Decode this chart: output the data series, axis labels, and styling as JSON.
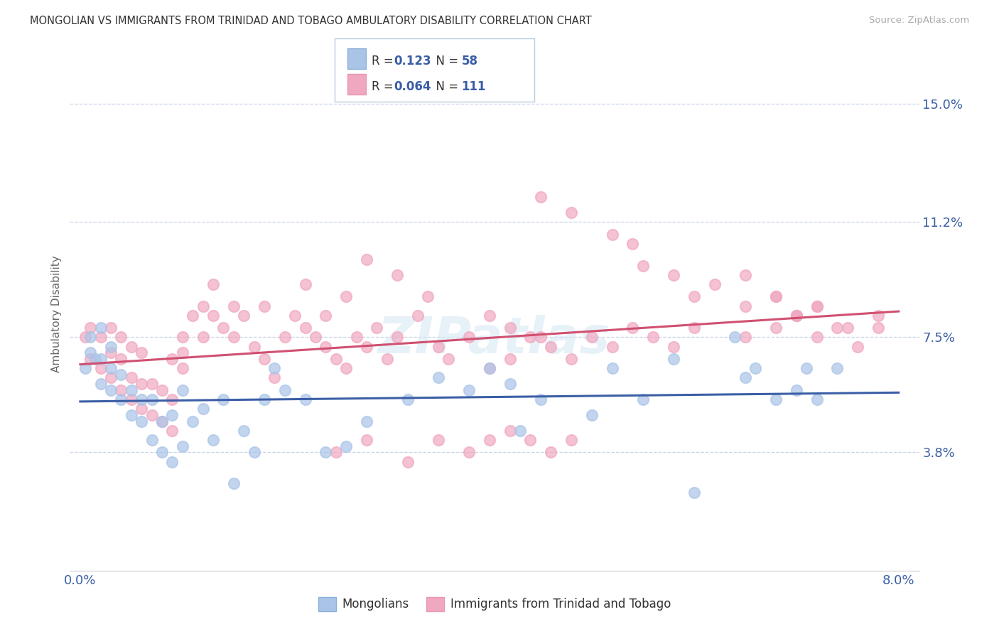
{
  "title": "MONGOLIAN VS IMMIGRANTS FROM TRINIDAD AND TOBAGO AMBULATORY DISABILITY CORRELATION CHART",
  "source": "Source: ZipAtlas.com",
  "ylabel": "Ambulatory Disability",
  "xlim": [
    -0.001,
    0.082
  ],
  "ylim": [
    0.0,
    0.165
  ],
  "yticks": [
    0.038,
    0.075,
    0.112,
    0.15
  ],
  "ytick_labels": [
    "3.8%",
    "7.5%",
    "11.2%",
    "15.0%"
  ],
  "xtick_vals": [
    0.0,
    0.08
  ],
  "xtick_labels": [
    "0.0%",
    "8.0%"
  ],
  "mongolian_color": "#aac4e8",
  "trinidad_color": "#f0a8c0",
  "mongolian_line_color": "#3b5ea6",
  "trinidad_line_color": "#d05070",
  "legend_R1": "0.123",
  "legend_N1": "58",
  "legend_R2": "0.064",
  "legend_N2": "111",
  "background_color": "#ffffff",
  "grid_color": "#c8d4e8",
  "watermark": "ZIPatlas",
  "mongolian_x": [
    0.0005,
    0.001,
    0.001,
    0.0015,
    0.002,
    0.002,
    0.002,
    0.003,
    0.003,
    0.003,
    0.004,
    0.004,
    0.005,
    0.005,
    0.006,
    0.006,
    0.007,
    0.007,
    0.008,
    0.008,
    0.009,
    0.009,
    0.01,
    0.01,
    0.011,
    0.012,
    0.013,
    0.014,
    0.015,
    0.016,
    0.017,
    0.018,
    0.019,
    0.02,
    0.022,
    0.024,
    0.026,
    0.028,
    0.032,
    0.035,
    0.038,
    0.04,
    0.042,
    0.043,
    0.045,
    0.05,
    0.052,
    0.055,
    0.058,
    0.06,
    0.064,
    0.065,
    0.066,
    0.068,
    0.07,
    0.071,
    0.072,
    0.074
  ],
  "mongolian_y": [
    0.065,
    0.07,
    0.075,
    0.068,
    0.06,
    0.068,
    0.078,
    0.058,
    0.065,
    0.072,
    0.055,
    0.063,
    0.05,
    0.058,
    0.048,
    0.055,
    0.042,
    0.055,
    0.038,
    0.048,
    0.035,
    0.05,
    0.04,
    0.058,
    0.048,
    0.052,
    0.042,
    0.055,
    0.028,
    0.045,
    0.038,
    0.055,
    0.065,
    0.058,
    0.055,
    0.038,
    0.04,
    0.048,
    0.055,
    0.062,
    0.058,
    0.065,
    0.06,
    0.045,
    0.055,
    0.05,
    0.065,
    0.055,
    0.068,
    0.025,
    0.075,
    0.062,
    0.065,
    0.055,
    0.058,
    0.065,
    0.055,
    0.065
  ],
  "trinidad_x": [
    0.0005,
    0.001,
    0.001,
    0.002,
    0.002,
    0.003,
    0.003,
    0.003,
    0.004,
    0.004,
    0.004,
    0.005,
    0.005,
    0.005,
    0.006,
    0.006,
    0.006,
    0.007,
    0.007,
    0.008,
    0.008,
    0.009,
    0.009,
    0.009,
    0.01,
    0.01,
    0.01,
    0.011,
    0.012,
    0.012,
    0.013,
    0.013,
    0.014,
    0.015,
    0.015,
    0.016,
    0.017,
    0.018,
    0.019,
    0.02,
    0.021,
    0.022,
    0.023,
    0.024,
    0.025,
    0.026,
    0.027,
    0.028,
    0.029,
    0.03,
    0.031,
    0.033,
    0.034,
    0.035,
    0.036,
    0.038,
    0.04,
    0.042,
    0.044,
    0.046,
    0.048,
    0.05,
    0.052,
    0.054,
    0.056,
    0.058,
    0.06,
    0.031,
    0.028,
    0.026,
    0.024,
    0.022,
    0.018,
    0.065,
    0.068,
    0.07,
    0.072,
    0.074,
    0.076,
    0.078,
    0.065,
    0.068,
    0.07,
    0.072,
    0.025,
    0.028,
    0.032,
    0.035,
    0.038,
    0.04,
    0.042,
    0.044,
    0.046,
    0.048,
    0.045,
    0.048,
    0.052,
    0.054,
    0.055,
    0.058,
    0.06,
    0.062,
    0.065,
    0.068,
    0.07,
    0.072,
    0.075,
    0.078,
    0.04,
    0.042,
    0.045
  ],
  "trinidad_y": [
    0.075,
    0.068,
    0.078,
    0.065,
    0.075,
    0.062,
    0.07,
    0.078,
    0.058,
    0.068,
    0.075,
    0.055,
    0.062,
    0.072,
    0.052,
    0.06,
    0.07,
    0.05,
    0.06,
    0.048,
    0.058,
    0.045,
    0.055,
    0.068,
    0.075,
    0.07,
    0.065,
    0.082,
    0.085,
    0.075,
    0.082,
    0.092,
    0.078,
    0.085,
    0.075,
    0.082,
    0.072,
    0.068,
    0.062,
    0.075,
    0.082,
    0.078,
    0.075,
    0.072,
    0.068,
    0.065,
    0.075,
    0.072,
    0.078,
    0.068,
    0.075,
    0.082,
    0.088,
    0.072,
    0.068,
    0.075,
    0.082,
    0.078,
    0.075,
    0.072,
    0.068,
    0.075,
    0.072,
    0.078,
    0.075,
    0.072,
    0.078,
    0.095,
    0.1,
    0.088,
    0.082,
    0.092,
    0.085,
    0.075,
    0.078,
    0.082,
    0.075,
    0.078,
    0.072,
    0.078,
    0.095,
    0.088,
    0.082,
    0.085,
    0.038,
    0.042,
    0.035,
    0.042,
    0.038,
    0.042,
    0.045,
    0.042,
    0.038,
    0.042,
    0.12,
    0.115,
    0.108,
    0.105,
    0.098,
    0.095,
    0.088,
    0.092,
    0.085,
    0.088,
    0.082,
    0.085,
    0.078,
    0.082,
    0.065,
    0.068,
    0.075
  ]
}
